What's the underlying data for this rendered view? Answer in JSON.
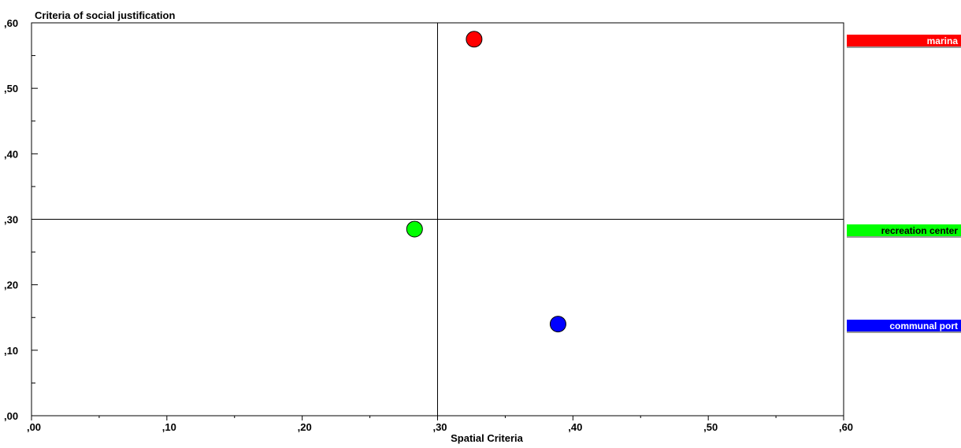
{
  "chart_data": {
    "type": "scatter",
    "title": "Criteria of social justification",
    "xlabel": "Spatial Criteria",
    "ylabel": "Criteria of social justification",
    "xlim": [
      0,
      0.6
    ],
    "ylim": [
      0,
      0.6
    ],
    "x_tick_labels": [
      ",00",
      ",10",
      ",20",
      ",30",
      ",40",
      ",50",
      ",60"
    ],
    "y_tick_labels": [
      ",00",
      ",10",
      ",20",
      ",30",
      ",40",
      ",50",
      ",60"
    ],
    "reference_lines": {
      "x": 0.3,
      "y": 0.3
    },
    "grid": false,
    "legend_placement": "right",
    "points": [
      {
        "label": "marina",
        "x": 0.327,
        "y": 0.575,
        "color": "#ff0000",
        "text_color": "#ffffff"
      },
      {
        "label": "recreation center",
        "x": 0.283,
        "y": 0.285,
        "color": "#00ff00",
        "text_color": "#000000"
      },
      {
        "label": "communal port",
        "x": 0.389,
        "y": 0.14,
        "color": "#0000ff",
        "text_color": "#ffffff"
      }
    ]
  }
}
